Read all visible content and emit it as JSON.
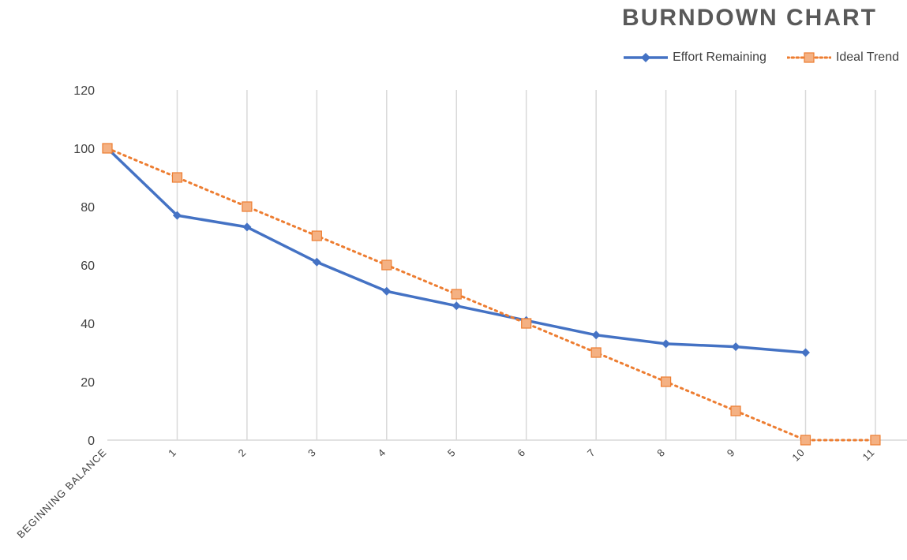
{
  "chart_data": {
    "type": "line",
    "title": "BURNDOWN CHART",
    "xlabel": "",
    "ylabel": "",
    "categories": [
      "BEGINNING BALANCE",
      "1",
      "2",
      "3",
      "4",
      "5",
      "6",
      "7",
      "8",
      "9",
      "10",
      "11"
    ],
    "ylim": [
      0,
      120
    ],
    "yticks": [
      "0",
      "20",
      "40",
      "60",
      "80",
      "100",
      "120"
    ],
    "grid": "vertical",
    "legend_position": "top-right",
    "series": [
      {
        "name": "Effort Remaining",
        "color": "#4472C4",
        "marker": "diamond",
        "line_style": "solid",
        "values": [
          100,
          77,
          73,
          61,
          51,
          46,
          41,
          36,
          33,
          32,
          30,
          null
        ]
      },
      {
        "name": "Ideal Trend",
        "color": "#ED7D31",
        "marker": "square",
        "line_style": "dotted",
        "values": [
          100,
          90,
          80,
          70,
          60,
          50,
          40,
          30,
          20,
          10,
          0,
          0
        ]
      }
    ]
  }
}
